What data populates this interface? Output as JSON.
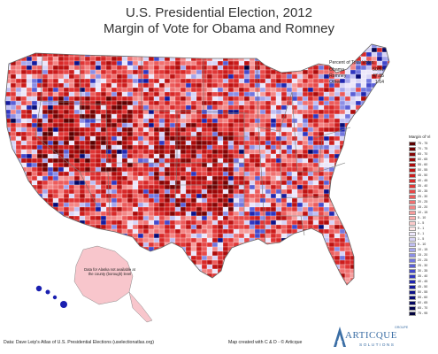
{
  "title": "U.S. Presidential Election, 2012",
  "subtitle": "Margin of Vote for Obama and Romney",
  "popular_vote": {
    "heading": "Percent of Total Votes:",
    "rows": [
      {
        "candidate": "Obama",
        "value": "50.51"
      },
      {
        "candidate": "Romney",
        "value": "47.85"
      },
      {
        "candidate": "Other",
        "value": "1.64"
      }
    ]
  },
  "legend": {
    "title": "Margin of Vi",
    "classes": [
      {
        "label": "75 - 75",
        "color": "#5c0000"
      },
      {
        "label": "70 - 75",
        "color": "#720202"
      },
      {
        "label": "65 - 70",
        "color": "#850404"
      },
      {
        "label": "60 - 65",
        "color": "#990606"
      },
      {
        "label": "55 - 60",
        "color": "#ad0b0b"
      },
      {
        "label": "50 - 55",
        "color": "#be1212"
      },
      {
        "label": "45 - 50",
        "color": "#cc1c1c"
      },
      {
        "label": "40 - 45",
        "color": "#d82828"
      },
      {
        "label": "35 - 40",
        "color": "#e03636"
      },
      {
        "label": "30 - 35",
        "color": "#e74848"
      },
      {
        "label": "25 - 30",
        "color": "#ec5c5c"
      },
      {
        "label": "20 - 25",
        "color": "#f07070"
      },
      {
        "label": "15 - 20",
        "color": "#f38686"
      },
      {
        "label": "10 - 15",
        "color": "#f69c9c"
      },
      {
        "label": "5 - 10",
        "color": "#f8b2b2"
      },
      {
        "label": "1 - 5",
        "color": "#fbcaca"
      },
      {
        "label": "0 - 1",
        "color": "#fde6e6"
      },
      {
        "label": "0 - 1",
        "color": "#ece6fa"
      },
      {
        "label": "1 - 5",
        "color": "#d8d4f6"
      },
      {
        "label": "5 - 10",
        "color": "#c0bef2"
      },
      {
        "label": "10 - 15",
        "color": "#a6a6ec"
      },
      {
        "label": "15 - 20",
        "color": "#8c8ee6"
      },
      {
        "label": "20 - 25",
        "color": "#7276de"
      },
      {
        "label": "25 - 30",
        "color": "#5a5fd6"
      },
      {
        "label": "30 - 35",
        "color": "#4449cc"
      },
      {
        "label": "35 - 40",
        "color": "#3036c0"
      },
      {
        "label": "40 - 45",
        "color": "#2026b0"
      },
      {
        "label": "45 - 50",
        "color": "#141a9e"
      },
      {
        "label": "50 - 55",
        "color": "#0c118a"
      },
      {
        "label": "55 - 60",
        "color": "#070b76"
      },
      {
        "label": "60 - 65",
        "color": "#040762"
      },
      {
        "label": "65 - 70",
        "color": "#02044f"
      },
      {
        "label": "75 - 95",
        "color": "#01023e"
      }
    ]
  },
  "alaska_note": "Data for Alaska not available at the county (borough) level",
  "source": "Data: Dave Leip's Atlas of U.S. Presidential Elections (uselectionatlas.org)",
  "credit": "Map created with C & D - © Articque",
  "logo": {
    "name": "ARTICQUE",
    "sub": "SOLUTIONS",
    "mark": "GROUPE"
  },
  "colors": {
    "ocean": "#ffffff",
    "land_base": "#e03636",
    "alaska": "#f8c6cc",
    "hawaii": "#1a1fb0",
    "state_border": "#7a7a7a"
  }
}
